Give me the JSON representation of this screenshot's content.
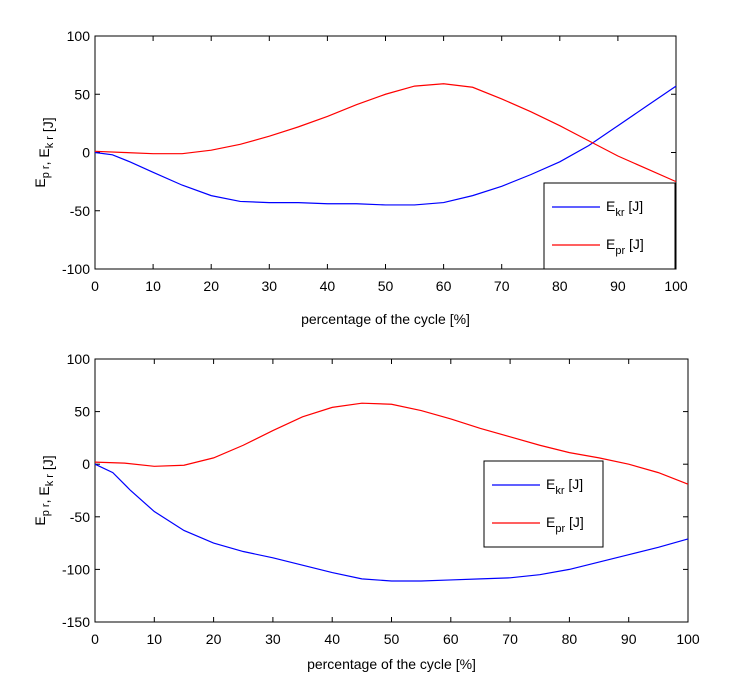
{
  "chart_data": [
    {
      "type": "line",
      "xlabel": "percentage of the cycle [%]",
      "ylabel": {
        "parts": [
          {
            "t": "E",
            "s": false
          },
          {
            "t": "p r",
            "s": true
          },
          {
            "t": ", E",
            "s": false
          },
          {
            "t": "k r",
            "s": true
          },
          {
            "t": " [J]",
            "s": false
          }
        ]
      },
      "xlim": [
        0,
        100
      ],
      "ylim": [
        -100,
        100
      ],
      "xticks": [
        0,
        10,
        20,
        30,
        40,
        50,
        60,
        70,
        80,
        90,
        100
      ],
      "yticks": [
        -100,
        -50,
        0,
        50,
        100
      ],
      "grid": false,
      "legend_position": "bottom-right",
      "series": [
        {
          "name": "E kr [J]",
          "legend": {
            "base": "E",
            "sub": "kr",
            "unit": " [J]"
          },
          "color": "#0000ff",
          "x": [
            0,
            3,
            6,
            10,
            15,
            20,
            25,
            30,
            35,
            40,
            45,
            50,
            55,
            60,
            65,
            70,
            75,
            80,
            85,
            90,
            95,
            100
          ],
          "y": [
            0,
            -2,
            -8,
            -17,
            -28,
            -37,
            -42,
            -43,
            -43,
            -44,
            -44,
            -45,
            -45,
            -43,
            -37,
            -29,
            -19,
            -8,
            6,
            23,
            40,
            57
          ]
        },
        {
          "name": "E pr [J]",
          "legend": {
            "base": "E",
            "sub": "pr",
            "unit": " [J]"
          },
          "color": "#ff0000",
          "x": [
            0,
            5,
            10,
            15,
            20,
            25,
            30,
            35,
            40,
            45,
            50,
            55,
            60,
            65,
            70,
            75,
            80,
            85,
            90,
            95,
            100
          ],
          "y": [
            1,
            0,
            -1,
            -1,
            2,
            7,
            14,
            22,
            31,
            41,
            50,
            57,
            59,
            56,
            46,
            35,
            23,
            10,
            -3,
            -14,
            -25
          ]
        }
      ]
    },
    {
      "type": "line",
      "xlabel": "percentage of the cycle [%]",
      "ylabel": {
        "parts": [
          {
            "t": "E",
            "s": false
          },
          {
            "t": "p r",
            "s": true
          },
          {
            "t": ", E",
            "s": false
          },
          {
            "t": "k r",
            "s": true
          },
          {
            "t": " [J]",
            "s": false
          }
        ]
      },
      "xlim": [
        0,
        100
      ],
      "ylim": [
        -150,
        100
      ],
      "xticks": [
        0,
        10,
        20,
        30,
        40,
        50,
        60,
        70,
        80,
        90,
        100
      ],
      "yticks": [
        -150,
        -100,
        -50,
        0,
        50,
        100
      ],
      "grid": false,
      "legend_position": "center-right",
      "series": [
        {
          "name": "E kr [J]",
          "legend": {
            "base": "E",
            "sub": "kr",
            "unit": " [J]"
          },
          "color": "#0000ff",
          "x": [
            0,
            3,
            6,
            10,
            15,
            20,
            25,
            30,
            35,
            40,
            45,
            50,
            55,
            60,
            65,
            70,
            75,
            80,
            85,
            90,
            95,
            100
          ],
          "y": [
            0,
            -8,
            -25,
            -45,
            -63,
            -75,
            -83,
            -89,
            -96,
            -103,
            -109,
            -111,
            -111,
            -110,
            -109,
            -108,
            -105,
            -100,
            -93,
            -86,
            -79,
            -71
          ]
        },
        {
          "name": "E pr [J]",
          "legend": {
            "base": "E",
            "sub": "pr",
            "unit": " [J]"
          },
          "color": "#ff0000",
          "x": [
            0,
            5,
            10,
            15,
            20,
            25,
            30,
            35,
            40,
            45,
            50,
            55,
            60,
            65,
            70,
            75,
            80,
            85,
            90,
            95,
            100
          ],
          "y": [
            2,
            1,
            -2,
            -1,
            6,
            18,
            32,
            45,
            54,
            58,
            57,
            51,
            43,
            34,
            26,
            18,
            11,
            6,
            0,
            -8,
            -19
          ]
        }
      ]
    }
  ]
}
